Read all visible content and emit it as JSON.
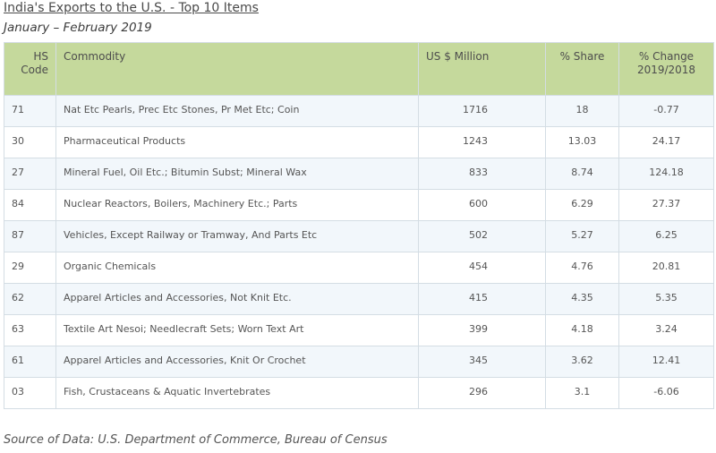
{
  "title": "India's Exports to the U.S. - Top 10 Items",
  "subtitle": "January – February 2019",
  "table": {
    "headers": {
      "code_line1": "HS",
      "code_line2": "Code",
      "commodity": "Commodity",
      "usd": "US $ Million",
      "share": "% Share",
      "change_line1": "% Change",
      "change_line2": "2019/2018"
    },
    "rows": [
      {
        "code": "71",
        "commodity": "Nat Etc Pearls, Prec Etc Stones, Pr Met Etc; Coin",
        "usd": "1716",
        "share": "18",
        "change": "-0.77"
      },
      {
        "code": "30",
        "commodity": "Pharmaceutical Products",
        "usd": "1243",
        "share": "13.03",
        "change": "24.17"
      },
      {
        "code": "27",
        "commodity": "Mineral Fuel, Oil Etc.; Bitumin Subst; Mineral Wax",
        "usd": "833",
        "share": "8.74",
        "change": "124.18"
      },
      {
        "code": "84",
        "commodity": "Nuclear Reactors, Boilers, Machinery Etc.; Parts",
        "usd": "600",
        "share": "6.29",
        "change": "27.37"
      },
      {
        "code": "87",
        "commodity": "Vehicles, Except Railway or Tramway, And Parts Etc",
        "usd": "502",
        "share": "5.27",
        "change": "6.25"
      },
      {
        "code": "29",
        "commodity": "Organic Chemicals",
        "usd": "454",
        "share": "4.76",
        "change": "20.81"
      },
      {
        "code": "62",
        "commodity": "Apparel Articles and Accessories, Not Knit Etc.",
        "usd": "415",
        "share": "4.35",
        "change": "5.35"
      },
      {
        "code": "63",
        "commodity": "Textile Art Nesoi; Needlecraft Sets; Worn Text Art",
        "usd": "399",
        "share": "4.18",
        "change": "3.24"
      },
      {
        "code": "61",
        "commodity": "Apparel Articles and Accessories, Knit Or Crochet",
        "usd": "345",
        "share": "3.62",
        "change": "12.41"
      },
      {
        "code": "03",
        "commodity": "Fish, Crustaceans & Aquatic Invertebrates",
        "usd": "296",
        "share": "3.1",
        "change": "-6.06"
      }
    ]
  },
  "source": "Source of Data: U.S. Department of Commerce, Bureau of Census",
  "colors": {
    "header_bg": "#c5d99c",
    "row_alt_bg": "#f2f7fb",
    "border": "#d4dde4"
  }
}
